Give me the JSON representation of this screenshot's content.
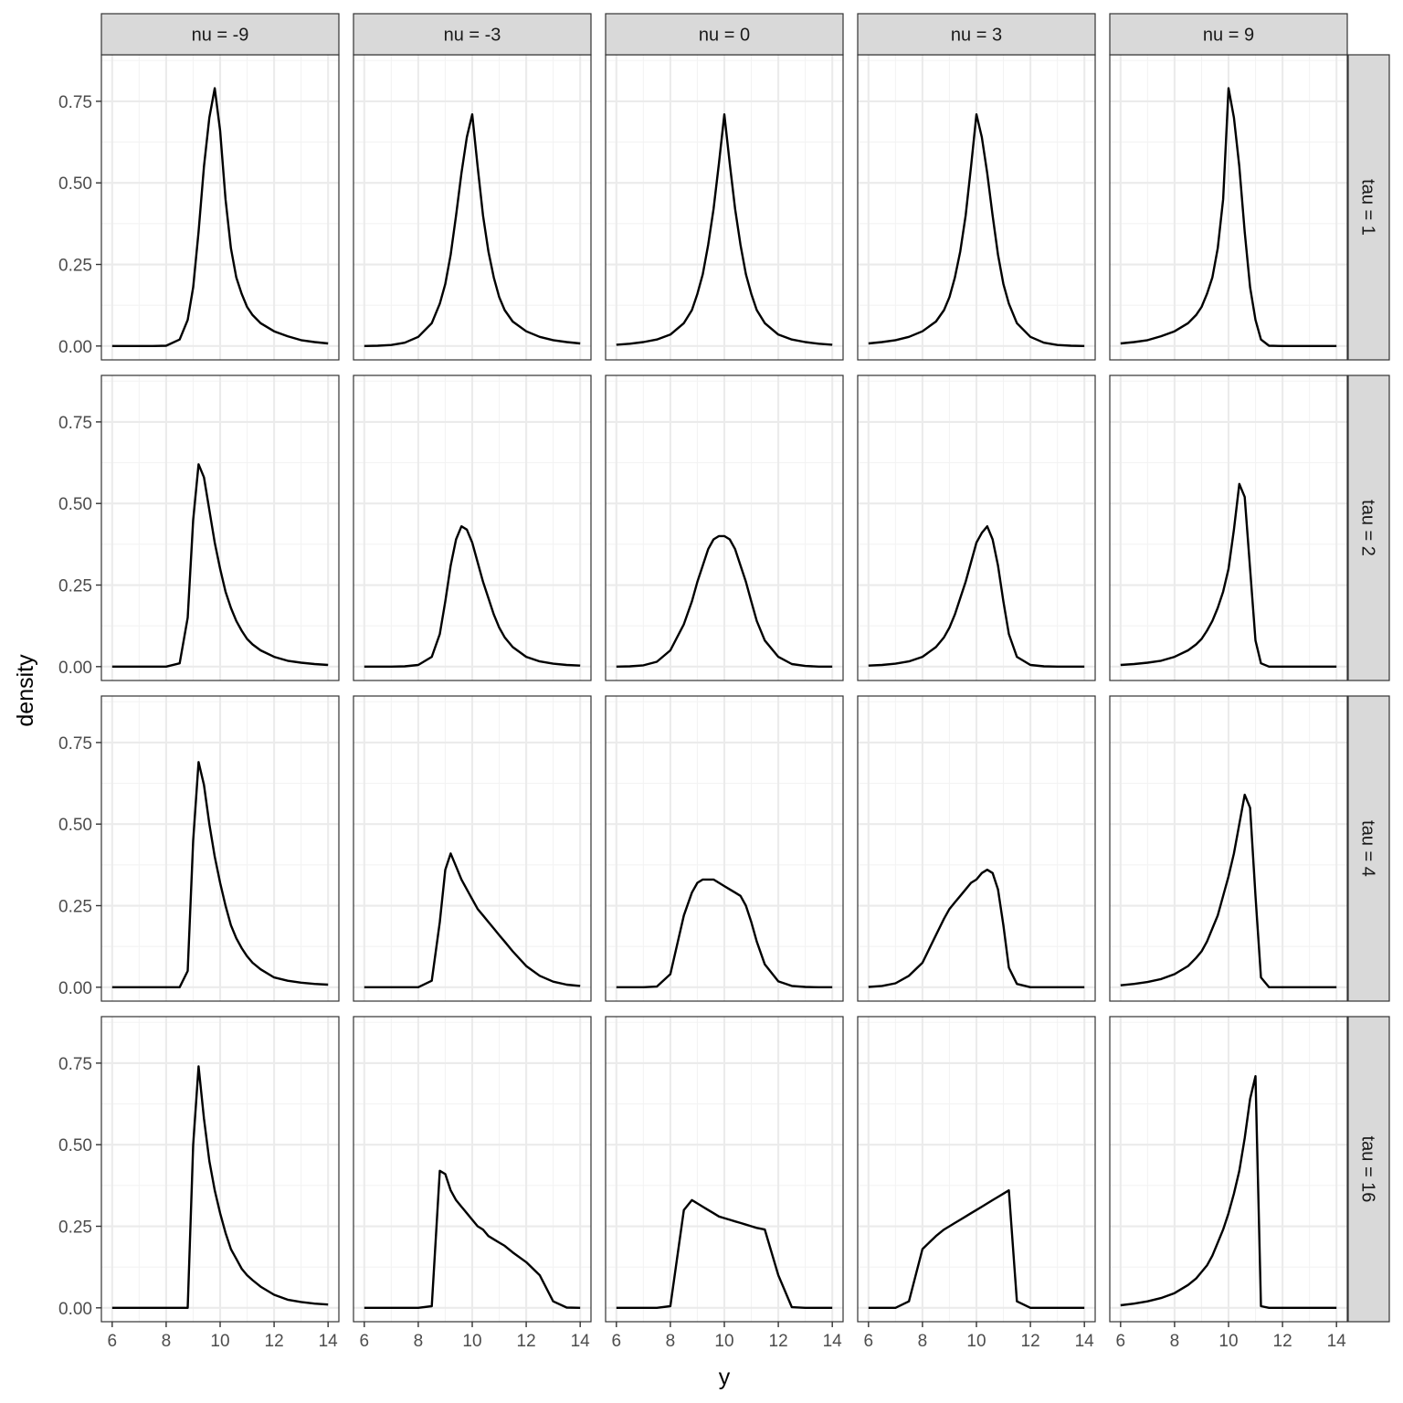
{
  "chart_data": {
    "type": "line",
    "layout": "facet_grid",
    "xlabel": "y",
    "ylabel": "density",
    "xlim": [
      6,
      14
    ],
    "ylim": [
      0,
      0.85
    ],
    "x_ticks": [
      6,
      8,
      10,
      12,
      14
    ],
    "x_tick_labels": [
      "6",
      "8",
      "10",
      "12",
      "14"
    ],
    "y_ticks": [
      0,
      0.25,
      0.5,
      0.75
    ],
    "y_tick_labels": [
      "0.00",
      "0.25",
      "0.50",
      "0.75"
    ],
    "grid": true,
    "column_strips": [
      "nu = -9",
      "nu = -3",
      "nu = 0",
      "nu = 3",
      "nu = 9"
    ],
    "row_strips": [
      "tau = 1",
      "tau = 2",
      "tau = 4",
      "tau = 16"
    ],
    "x": [
      6.0,
      6.5,
      7.0,
      7.5,
      8.0,
      8.5,
      8.8,
      9.0,
      9.2,
      9.4,
      9.6,
      9.8,
      10.0,
      10.2,
      10.4,
      10.6,
      10.8,
      11.0,
      11.2,
      11.5,
      12.0,
      12.5,
      13.0,
      13.5,
      14.0
    ],
    "panels": [
      [
        {
          "row": "tau = 1",
          "col": "nu = -9",
          "y": [
            0,
            0,
            0,
            0,
            0.001,
            0.02,
            0.08,
            0.18,
            0.35,
            0.55,
            0.7,
            0.79,
            0.66,
            0.45,
            0.3,
            0.21,
            0.16,
            0.12,
            0.095,
            0.07,
            0.045,
            0.03,
            0.018,
            0.012,
            0.008
          ]
        },
        {
          "row": "tau = 1",
          "col": "nu = -3",
          "y": [
            0.0,
            0.001,
            0.003,
            0.01,
            0.028,
            0.07,
            0.13,
            0.19,
            0.28,
            0.4,
            0.53,
            0.64,
            0.71,
            0.55,
            0.4,
            0.29,
            0.21,
            0.15,
            0.11,
            0.075,
            0.045,
            0.028,
            0.018,
            0.012,
            0.008
          ]
        },
        {
          "row": "tau = 1",
          "col": "nu = 0",
          "y": [
            0.004,
            0.007,
            0.012,
            0.02,
            0.035,
            0.07,
            0.11,
            0.16,
            0.22,
            0.31,
            0.42,
            0.56,
            0.71,
            0.56,
            0.42,
            0.31,
            0.22,
            0.16,
            0.11,
            0.07,
            0.035,
            0.02,
            0.012,
            0.007,
            0.004
          ]
        },
        {
          "row": "tau = 1",
          "col": "nu = 3",
          "y": [
            0.008,
            0.012,
            0.018,
            0.028,
            0.045,
            0.075,
            0.11,
            0.15,
            0.21,
            0.29,
            0.4,
            0.55,
            0.71,
            0.64,
            0.53,
            0.4,
            0.28,
            0.19,
            0.13,
            0.07,
            0.028,
            0.01,
            0.003,
            0.001,
            0.0
          ]
        },
        {
          "row": "tau = 1",
          "col": "nu = 9",
          "y": [
            0.008,
            0.012,
            0.018,
            0.03,
            0.045,
            0.07,
            0.095,
            0.12,
            0.16,
            0.21,
            0.3,
            0.45,
            0.79,
            0.7,
            0.55,
            0.35,
            0.18,
            0.08,
            0.02,
            0.001,
            0,
            0,
            0,
            0,
            0
          ]
        }
      ],
      [
        {
          "row": "tau = 2",
          "col": "nu = -9",
          "y": [
            0,
            0,
            0,
            0,
            0,
            0.01,
            0.15,
            0.45,
            0.62,
            0.58,
            0.48,
            0.38,
            0.3,
            0.23,
            0.18,
            0.14,
            0.11,
            0.085,
            0.068,
            0.05,
            0.03,
            0.018,
            0.012,
            0.008,
            0.005
          ]
        },
        {
          "row": "tau = 2",
          "col": "nu = -3",
          "y": [
            0,
            0,
            0,
            0.001,
            0.005,
            0.03,
            0.1,
            0.2,
            0.31,
            0.39,
            0.43,
            0.42,
            0.38,
            0.32,
            0.26,
            0.21,
            0.16,
            0.12,
            0.09,
            0.06,
            0.03,
            0.016,
            0.009,
            0.005,
            0.003
          ]
        },
        {
          "row": "tau = 2",
          "col": "nu = 0",
          "y": [
            0.0,
            0.001,
            0.004,
            0.015,
            0.05,
            0.13,
            0.2,
            0.26,
            0.31,
            0.36,
            0.39,
            0.4,
            0.4,
            0.39,
            0.36,
            0.31,
            0.26,
            0.2,
            0.14,
            0.08,
            0.03,
            0.008,
            0.002,
            0.0,
            0.0
          ]
        },
        {
          "row": "tau = 2",
          "col": "nu = 3",
          "y": [
            0.003,
            0.005,
            0.009,
            0.016,
            0.03,
            0.06,
            0.09,
            0.12,
            0.16,
            0.21,
            0.26,
            0.32,
            0.38,
            0.41,
            0.43,
            0.39,
            0.31,
            0.2,
            0.1,
            0.03,
            0.005,
            0.001,
            0,
            0,
            0
          ]
        },
        {
          "row": "tau = 2",
          "col": "nu = 9",
          "y": [
            0.005,
            0.008,
            0.012,
            0.018,
            0.03,
            0.05,
            0.068,
            0.085,
            0.11,
            0.14,
            0.18,
            0.23,
            0.3,
            0.42,
            0.56,
            0.52,
            0.3,
            0.08,
            0.01,
            0,
            0,
            0,
            0,
            0,
            0
          ]
        }
      ],
      [
        {
          "row": "tau = 4",
          "col": "nu = -9",
          "y": [
            0,
            0,
            0,
            0,
            0,
            0,
            0.05,
            0.45,
            0.69,
            0.62,
            0.5,
            0.4,
            0.32,
            0.25,
            0.19,
            0.15,
            0.12,
            0.095,
            0.075,
            0.055,
            0.03,
            0.02,
            0.014,
            0.01,
            0.008
          ]
        },
        {
          "row": "tau = 4",
          "col": "nu = -3",
          "y": [
            0,
            0,
            0,
            0,
            0,
            0.02,
            0.2,
            0.36,
            0.41,
            0.37,
            0.33,
            0.3,
            0.27,
            0.24,
            0.22,
            0.2,
            0.18,
            0.16,
            0.14,
            0.11,
            0.065,
            0.035,
            0.017,
            0.008,
            0.004
          ]
        },
        {
          "row": "tau = 4",
          "col": "nu = 0",
          "y": [
            0,
            0,
            0,
            0.002,
            0.04,
            0.22,
            0.29,
            0.32,
            0.33,
            0.33,
            0.33,
            0.32,
            0.31,
            0.3,
            0.29,
            0.28,
            0.25,
            0.2,
            0.14,
            0.07,
            0.018,
            0.004,
            0.001,
            0,
            0
          ]
        },
        {
          "row": "tau = 4",
          "col": "nu = 3",
          "y": [
            0.001,
            0.004,
            0.012,
            0.035,
            0.075,
            0.16,
            0.21,
            0.24,
            0.26,
            0.28,
            0.3,
            0.32,
            0.33,
            0.35,
            0.36,
            0.35,
            0.3,
            0.19,
            0.06,
            0.01,
            0,
            0,
            0,
            0,
            0
          ]
        },
        {
          "row": "tau = 4",
          "col": "nu = 9",
          "y": [
            0.006,
            0.01,
            0.016,
            0.025,
            0.04,
            0.065,
            0.09,
            0.11,
            0.14,
            0.18,
            0.22,
            0.28,
            0.34,
            0.41,
            0.5,
            0.59,
            0.55,
            0.28,
            0.03,
            0,
            0,
            0,
            0,
            0,
            0
          ]
        }
      ],
      [
        {
          "row": "tau = 16",
          "col": "nu = -9",
          "y": [
            0,
            0,
            0,
            0,
            0,
            0,
            0,
            0.5,
            0.74,
            0.58,
            0.45,
            0.36,
            0.29,
            0.23,
            0.18,
            0.15,
            0.12,
            0.1,
            0.085,
            0.065,
            0.04,
            0.025,
            0.018,
            0.013,
            0.01
          ]
        },
        {
          "row": "tau = 16",
          "col": "nu = -3",
          "y": [
            0,
            0,
            0,
            0,
            0,
            0.005,
            0.42,
            0.41,
            0.36,
            0.33,
            0.31,
            0.29,
            0.27,
            0.25,
            0.24,
            0.22,
            0.21,
            0.2,
            0.19,
            0.17,
            0.14,
            0.1,
            0.02,
            0.001,
            0
          ]
        },
        {
          "row": "tau = 16",
          "col": "nu = 0",
          "y": [
            0,
            0,
            0,
            0,
            0.005,
            0.3,
            0.33,
            0.32,
            0.31,
            0.3,
            0.29,
            0.28,
            0.275,
            0.27,
            0.265,
            0.26,
            0.255,
            0.25,
            0.245,
            0.24,
            0.1,
            0.002,
            0,
            0,
            0
          ]
        },
        {
          "row": "tau = 16",
          "col": "nu = 3",
          "y": [
            0,
            0,
            0,
            0.02,
            0.18,
            0.22,
            0.24,
            0.25,
            0.26,
            0.27,
            0.28,
            0.29,
            0.3,
            0.31,
            0.32,
            0.33,
            0.34,
            0.35,
            0.36,
            0.02,
            0,
            0,
            0,
            0,
            0
          ]
        },
        {
          "row": "tau = 16",
          "col": "nu = 9",
          "y": [
            0.008,
            0.013,
            0.02,
            0.03,
            0.045,
            0.07,
            0.09,
            0.11,
            0.13,
            0.16,
            0.2,
            0.24,
            0.29,
            0.35,
            0.42,
            0.52,
            0.64,
            0.71,
            0.005,
            0,
            0,
            0,
            0,
            0,
            0
          ]
        }
      ]
    ]
  }
}
